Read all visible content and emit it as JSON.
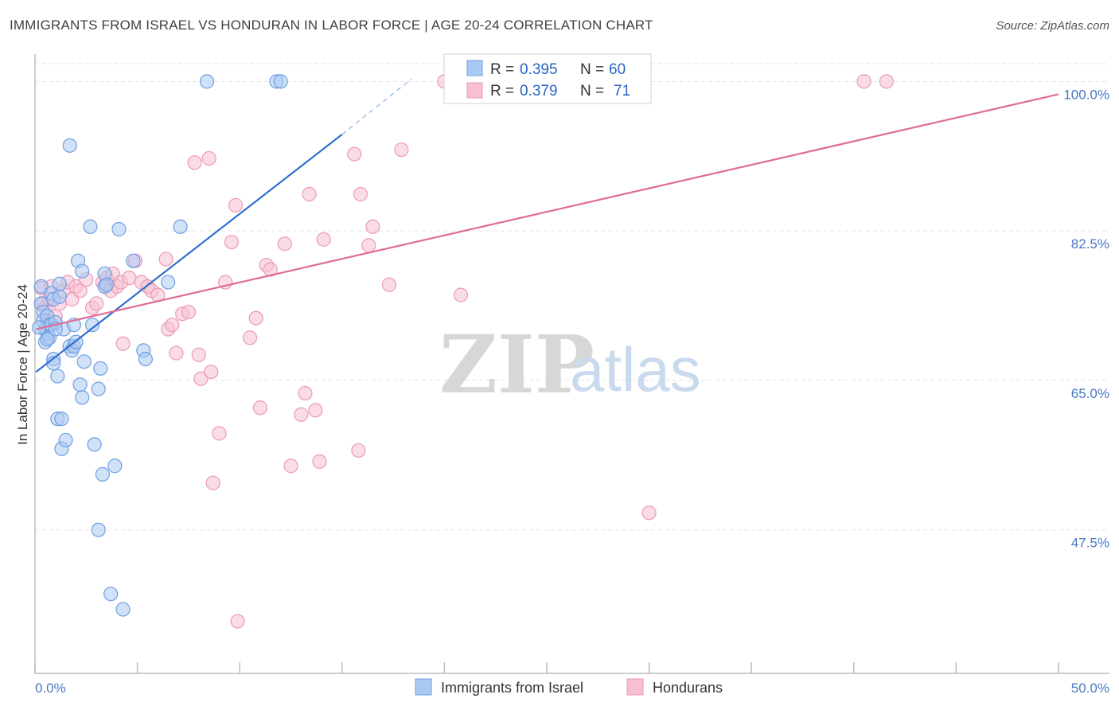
{
  "header": {
    "title": "IMMIGRANTS FROM ISRAEL VS HONDURAN IN LABOR FORCE | AGE 20-24 CORRELATION CHART",
    "source": "Source: ZipAtlas.com"
  },
  "watermark": {
    "zip": "ZIP",
    "atlas": "atlas"
  },
  "legend_top": [
    {
      "r_label": "R = ",
      "r_value": "0.395",
      "n_label": "N = ",
      "n_value": "60"
    },
    {
      "r_label": "R = ",
      "r_value": "0.379",
      "n_label": "N = ",
      "n_value": "71"
    }
  ],
  "legend_bottom": [
    "Immigrants from Israel",
    "Hondurans"
  ],
  "colors": {
    "israel_fill": "#a9c9f2",
    "israel_stroke": "#6f9fe0",
    "israel_line": "#2f6fcf",
    "honduran_fill": "#f6bfd2",
    "honduran_stroke": "#eb9ab8",
    "honduran_line": "#e06b96",
    "grid": "#e3e3e3",
    "tick_text": "#4a78c2"
  },
  "chart_data": {
    "type": "scatter",
    "title": "IMMIGRANTS FROM ISRAEL VS HONDURAN IN LABOR FORCE | AGE 20-24 CORRELATION CHART",
    "xlabel": "",
    "ylabel": "In Labor Force | Age 20-24",
    "xlim": [
      0,
      50
    ],
    "ylim": [
      30.7,
      103.2
    ],
    "x_tick_labels": [
      "0.0%",
      "50.0%"
    ],
    "y_ticks": [
      47.5,
      65.0,
      82.5,
      100.0
    ],
    "y_tick_labels": [
      "47.5%",
      "65.0%",
      "82.5%",
      "100.0%"
    ],
    "x_minor_ticks": [
      0,
      5,
      10,
      15,
      20,
      25,
      30,
      35,
      40,
      45,
      50
    ],
    "series": [
      {
        "name": "Immigrants from Israel",
        "R": 0.395,
        "N": 60,
        "trend": {
          "x_start": 0.05,
          "y_start": 66.0,
          "x_end": 15.0,
          "y_end": 93.8,
          "dash_to_x": 18.4,
          "dash_to_y": 100.3
        },
        "points": [
          [
            0.3,
            76.0
          ],
          [
            0.3,
            74.0
          ],
          [
            0.4,
            73.0
          ],
          [
            0.4,
            72.0
          ],
          [
            0.5,
            71.0
          ],
          [
            0.5,
            69.5
          ],
          [
            0.6,
            72.5
          ],
          [
            0.6,
            70.5
          ],
          [
            0.7,
            71.5
          ],
          [
            0.7,
            70.0
          ],
          [
            0.8,
            71.5
          ],
          [
            0.8,
            75.2
          ],
          [
            0.9,
            67.5
          ],
          [
            0.9,
            67.0
          ],
          [
            0.9,
            74.5
          ],
          [
            1.0,
            71.8
          ],
          [
            1.1,
            65.5
          ],
          [
            1.1,
            60.5
          ],
          [
            1.2,
            74.8
          ],
          [
            1.2,
            76.3
          ],
          [
            1.3,
            57.0
          ],
          [
            1.3,
            60.5
          ],
          [
            1.4,
            71.0
          ],
          [
            1.5,
            58.0
          ],
          [
            1.7,
            69.0
          ],
          [
            1.7,
            92.5
          ],
          [
            1.8,
            68.5
          ],
          [
            1.9,
            71.5
          ],
          [
            1.9,
            69.0
          ],
          [
            2.0,
            69.5
          ],
          [
            2.1,
            79.0
          ],
          [
            2.2,
            64.5
          ],
          [
            2.3,
            63.0
          ],
          [
            2.3,
            77.8
          ],
          [
            2.4,
            67.2
          ],
          [
            2.7,
            83.0
          ],
          [
            2.8,
            71.5
          ],
          [
            2.9,
            57.5
          ],
          [
            3.1,
            64.0
          ],
          [
            3.1,
            47.5
          ],
          [
            3.2,
            66.4
          ],
          [
            3.3,
            54.0
          ],
          [
            3.4,
            77.5
          ],
          [
            3.4,
            76.0
          ],
          [
            3.5,
            76.2
          ],
          [
            3.7,
            40.0
          ],
          [
            3.9,
            55.0
          ],
          [
            4.1,
            82.7
          ],
          [
            4.3,
            38.2
          ],
          [
            4.8,
            79.0
          ],
          [
            5.3,
            68.5
          ],
          [
            5.4,
            67.5
          ],
          [
            6.5,
            76.5
          ],
          [
            7.1,
            83.0
          ],
          [
            8.4,
            100.0
          ],
          [
            11.8,
            100.0
          ],
          [
            12.0,
            100.0
          ],
          [
            0.2,
            71.2
          ],
          [
            0.6,
            69.8
          ],
          [
            1.0,
            71.0
          ]
        ]
      },
      {
        "name": "Hondurans",
        "R": 0.379,
        "N": 71,
        "trend": {
          "x_start": 0.05,
          "y_start": 71.0,
          "x_end": 50.0,
          "y_end": 98.5
        },
        "points": [
          [
            0.3,
            75.8
          ],
          [
            0.4,
            74.0
          ],
          [
            0.5,
            73.5
          ],
          [
            0.6,
            72.0
          ],
          [
            0.7,
            74.5
          ],
          [
            0.8,
            76.0
          ],
          [
            1.0,
            72.5
          ],
          [
            1.2,
            74.0
          ],
          [
            1.4,
            75.5
          ],
          [
            1.6,
            76.5
          ],
          [
            1.8,
            74.5
          ],
          [
            2.0,
            76.0
          ],
          [
            2.2,
            75.5
          ],
          [
            2.5,
            76.8
          ],
          [
            2.8,
            73.5
          ],
          [
            3.0,
            74.0
          ],
          [
            3.3,
            76.5
          ],
          [
            3.5,
            77.0
          ],
          [
            3.7,
            75.5
          ],
          [
            3.8,
            77.5
          ],
          [
            4.0,
            76.0
          ],
          [
            4.2,
            76.5
          ],
          [
            4.3,
            69.3
          ],
          [
            4.6,
            77.0
          ],
          [
            4.9,
            79.0
          ],
          [
            5.2,
            76.5
          ],
          [
            5.5,
            76.0
          ],
          [
            5.7,
            75.5
          ],
          [
            6.0,
            75.0
          ],
          [
            6.4,
            79.2
          ],
          [
            6.5,
            71.0
          ],
          [
            6.7,
            71.5
          ],
          [
            6.9,
            68.2
          ],
          [
            7.2,
            72.8
          ],
          [
            7.5,
            73.0
          ],
          [
            7.8,
            90.5
          ],
          [
            8.0,
            68.0
          ],
          [
            8.1,
            65.2
          ],
          [
            8.5,
            91.0
          ],
          [
            8.6,
            66.0
          ],
          [
            8.7,
            53.0
          ],
          [
            9.0,
            58.8
          ],
          [
            9.3,
            76.5
          ],
          [
            9.6,
            81.2
          ],
          [
            9.8,
            85.5
          ],
          [
            9.9,
            36.8
          ],
          [
            10.5,
            70.0
          ],
          [
            10.8,
            72.3
          ],
          [
            11.0,
            61.8
          ],
          [
            11.3,
            78.5
          ],
          [
            11.5,
            78.0
          ],
          [
            12.2,
            81.0
          ],
          [
            12.5,
            55.0
          ],
          [
            13.0,
            61.0
          ],
          [
            13.2,
            63.5
          ],
          [
            13.4,
            86.8
          ],
          [
            13.7,
            61.5
          ],
          [
            13.9,
            55.5
          ],
          [
            14.1,
            81.5
          ],
          [
            15.6,
            91.5
          ],
          [
            15.8,
            56.8
          ],
          [
            15.9,
            86.8
          ],
          [
            16.3,
            80.8
          ],
          [
            16.5,
            83.0
          ],
          [
            17.3,
            76.2
          ],
          [
            17.9,
            92.0
          ],
          [
            20.0,
            100.0
          ],
          [
            20.8,
            75.0
          ],
          [
            30.0,
            49.5
          ],
          [
            40.5,
            100.0
          ],
          [
            41.6,
            100.0
          ]
        ]
      }
    ]
  }
}
